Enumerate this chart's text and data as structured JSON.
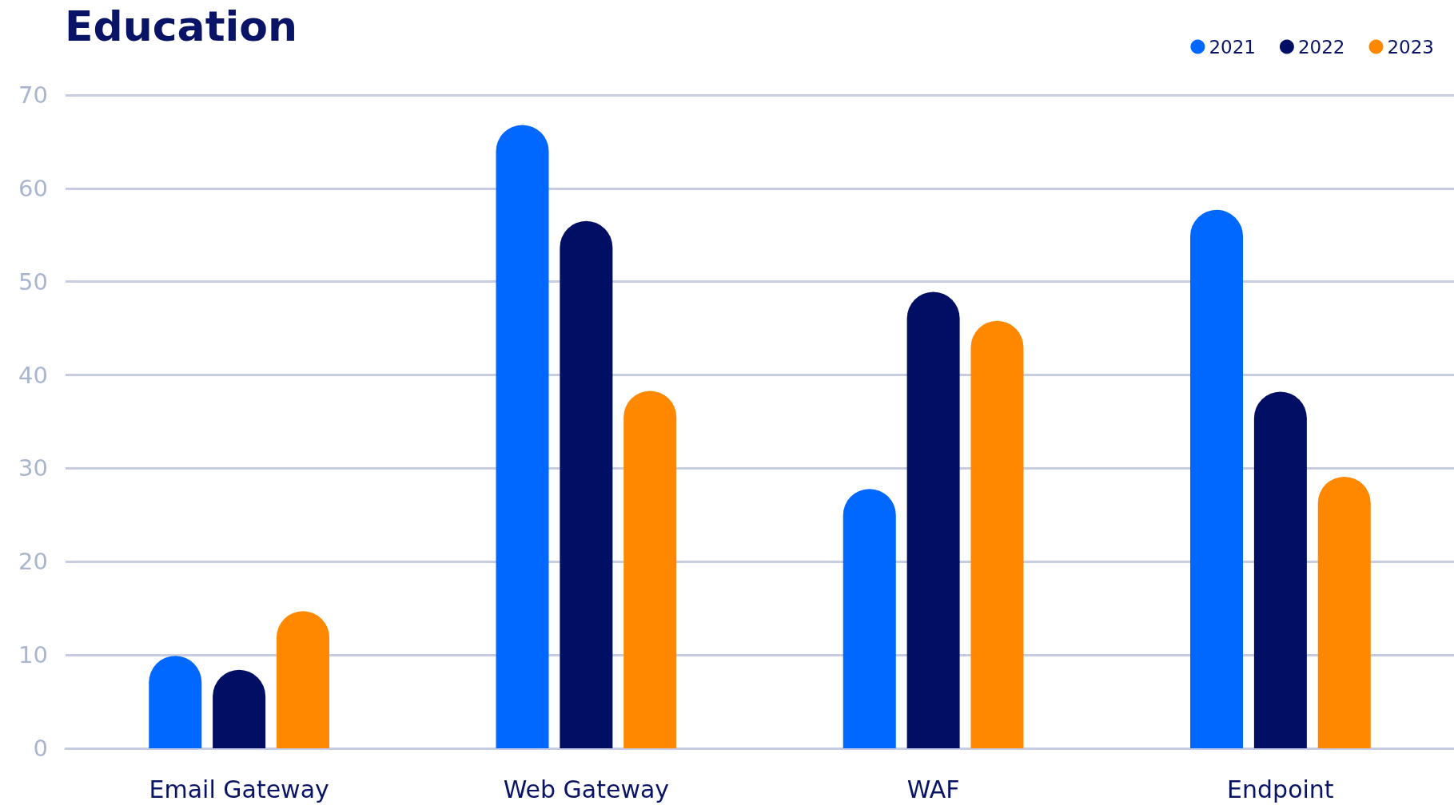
{
  "chart_data": {
    "type": "bar",
    "title": "Education",
    "categories": [
      "Email Gateway",
      "Web Gateway",
      "WAF",
      "Endpoint"
    ],
    "series": [
      {
        "name": "2021",
        "color": "#0068ff",
        "values": [
          9.9,
          66.8,
          27.8,
          57.7
        ]
      },
      {
        "name": "2022",
        "color": "#000f64",
        "values": [
          8.4,
          56.5,
          48.9,
          38.2
        ]
      },
      {
        "name": "2023",
        "color": "#ff8800",
        "values": [
          14.7,
          38.3,
          45.8,
          29.1
        ]
      }
    ],
    "ylim": [
      0,
      70
    ],
    "yticks": [
      0,
      10,
      20,
      30,
      40,
      50,
      60,
      70
    ],
    "grid": "y",
    "legend": "top right"
  }
}
